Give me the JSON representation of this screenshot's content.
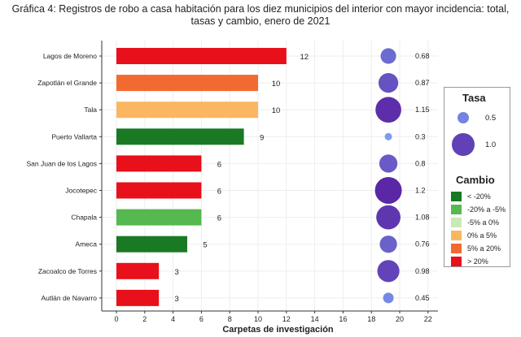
{
  "title_line1": "Gráfica 4: Registros de robo a casa habitación para los diez municipios del interior con mayor incidencia: total,",
  "title_line2": "tasas y cambio, enero de 2021",
  "chart_data": {
    "type": "bar",
    "orientation": "horizontal",
    "title": "Gráfica 4: Registros de robo a casa habitación para los diez municipios del interior con mayor incidencia: total, tasas y cambio, enero de 2021",
    "xlabel": "Carpetas de investigación",
    "ylabel": "",
    "xlim": [
      0,
      22
    ],
    "xticks": [
      0,
      2,
      4,
      6,
      8,
      10,
      12,
      14,
      16,
      18,
      20,
      22
    ],
    "grid": true,
    "categories": [
      "Lagos de Moreno",
      "Zapotlán el Grande",
      "Tala",
      "Puerto Vallarta",
      "San Juan de los Lagos",
      "Jocotepec",
      "Chapala",
      "Ameca",
      "Zacoalco de Torres",
      "Autlán de Navarro"
    ],
    "values": [
      12,
      10,
      10,
      9,
      6,
      6,
      6,
      5,
      3,
      3
    ],
    "value_labels": [
      "12",
      "10",
      "10",
      "9",
      "6",
      "6",
      "6",
      "5",
      "3",
      "3"
    ],
    "cambio": [
      "> 20%",
      "5% a 20%",
      "0% a 5%",
      "< -20%",
      "> 20%",
      "> 20%",
      "-20% a -5%",
      "< -20%",
      "> 20%",
      "> 20%"
    ],
    "tasa": [
      0.68,
      0.87,
      1.15,
      0.3,
      0.8,
      1.2,
      1.08,
      0.76,
      0.98,
      0.45
    ],
    "tasa_labels": [
      "0.68",
      "0.87",
      "1.15",
      "0.3",
      "0.8",
      "1.2",
      "1.08",
      "0.76",
      "0.98",
      "0.45"
    ],
    "tasa_x": 19.2,
    "legend_position": "right"
  },
  "legend": {
    "tasa_title": "Tasa",
    "tasa_items": [
      {
        "label": "0.5",
        "value": 0.5
      },
      {
        "label": "1.0",
        "value": 1.0
      }
    ],
    "cambio_title": "Cambio",
    "cambio_items": [
      {
        "label": "< -20%",
        "color": "#1a7a24"
      },
      {
        "label": "-20% a -5%",
        "color": "#55b94f"
      },
      {
        "label": "-5% a 0%",
        "color": "#c9eab5"
      },
      {
        "label": "0% a 5%",
        "color": "#fbb661"
      },
      {
        "label": "5% a 20%",
        "color": "#f36a30"
      },
      {
        "label": "> 20%",
        "color": "#e8101a"
      }
    ]
  },
  "colors": {
    "tasa_low": "#7a9df0",
    "tasa_high": "#5a27a6",
    "axis": "#333333",
    "grid": "#eeeeee"
  }
}
